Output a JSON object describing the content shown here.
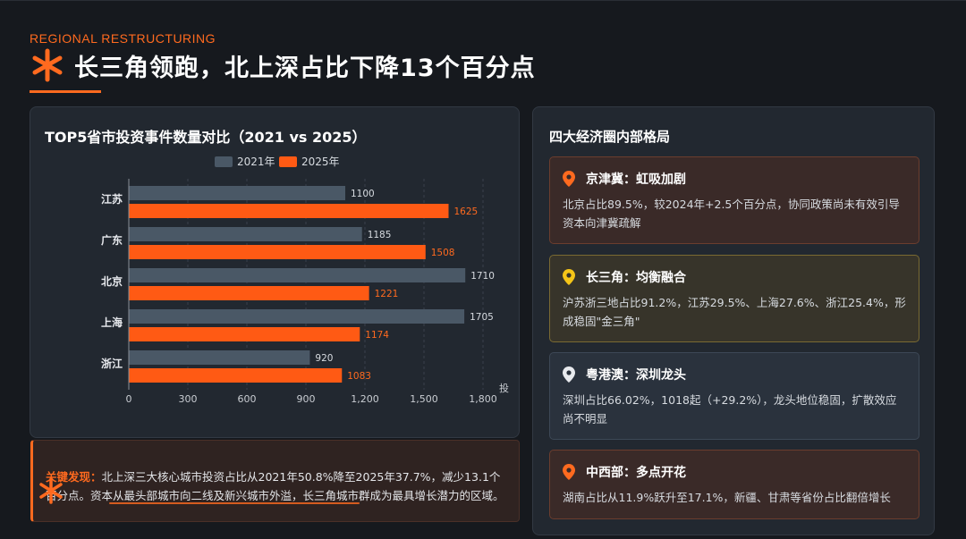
{
  "header": {
    "kicker": "REGIONAL RESTRUCTURING",
    "title": "长三角领跑，北上深占比下降13个百分点"
  },
  "colors": {
    "accent": "#ff6a1f",
    "bar_2021": "#4a5866",
    "bar_2025": "#ff5a14"
  },
  "chart_data": {
    "type": "bar",
    "orientation": "horizontal",
    "title": "TOP5省市投资事件数量对比（2021 vs 2025）",
    "categories": [
      "江苏",
      "广东",
      "北京",
      "上海",
      "浙江"
    ],
    "series": [
      {
        "name": "2021年",
        "values": [
          1100,
          1185,
          1710,
          1705,
          920
        ]
      },
      {
        "name": "2025年",
        "values": [
          1625,
          1508,
          1221,
          1174,
          1083
        ]
      }
    ],
    "xlabel": "投",
    "xlim": [
      0,
      1800
    ],
    "x_ticks": [
      "0",
      "300",
      "600",
      "900",
      "1,200",
      "1,500",
      "1,800"
    ],
    "legend_position": "top"
  },
  "right": {
    "title": "四大经济圈内部格局",
    "regions": [
      {
        "name": "京津冀：虹吸加剧",
        "pin_color": "#ff6a1f",
        "desc": "北京占比89.5%，较2024年+2.5个百分点，协同政策尚未有效引导资本向津冀疏解"
      },
      {
        "name": "长三角：均衡融合",
        "pin_color": "#f5c518",
        "desc": "沪苏浙三地占比91.2%，江苏29.5%、上海27.6%、浙江25.4%，形成稳固\"金三角\""
      },
      {
        "name": "粤港澳：深圳龙头",
        "pin_color": "#e8eaee",
        "desc": "深圳占比66.02%，1018起（+29.2%），龙头地位稳固，扩散效应尚不明显"
      },
      {
        "name": "中西部：多点开花",
        "pin_color": "#ff6a1f",
        "desc": "湖南占比从11.9%跃升至17.1%，新疆、甘肃等省份占比翻倍增长"
      }
    ]
  },
  "finding": {
    "label": "关键发现：",
    "text": "北上深三大核心城市投资占比从2021年50.8%降至2025年37.7%，减少13.1个百分点。资本从最头部城市向二线及新兴城市外溢，长三角城市群成为最具增长潜力的区域。"
  }
}
